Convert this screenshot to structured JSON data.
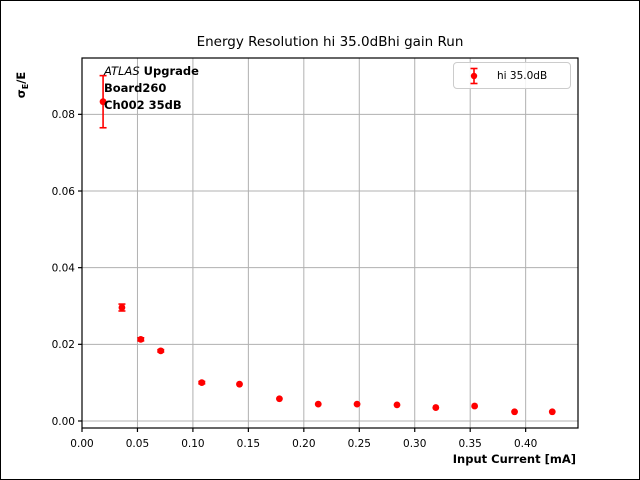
{
  "colors": {
    "accent": "#ff0000",
    "grid": "#b0b0b0",
    "axes": "#000000",
    "legend_border": "#cccccc",
    "background": "#ffffff"
  },
  "chart_data": {
    "type": "scatter",
    "title": "Energy Resolution hi 35.0dBhi gain Run",
    "xlabel": "Input Current [mA]",
    "ylabel": "σE/E",
    "ylabel_parts": {
      "sigma": "σ",
      "sub": "E",
      "rest": "/E"
    },
    "xlim": [
      0,
      0.4472
    ],
    "ylim": [
      -0.00183,
      0.0947
    ],
    "xticks": [
      0,
      0.05,
      0.1,
      0.15,
      0.2,
      0.25,
      0.3,
      0.35,
      0.4
    ],
    "yticks": [
      0,
      0.02,
      0.04,
      0.06,
      0.08
    ],
    "grid": true,
    "legend": {
      "label": "hi 35.0dB",
      "position": "upper right"
    },
    "annotation": {
      "experiment": "ATLAS",
      "tag": "Upgrade",
      "board": "Board260",
      "channel": "Ch002 35dB"
    },
    "series": [
      {
        "name": "hi 35.0dB",
        "color": "#ff0000",
        "marker": "circle",
        "x": [
          0.019,
          0.036,
          0.053,
          0.071,
          0.108,
          0.142,
          0.178,
          0.213,
          0.248,
          0.284,
          0.319,
          0.354,
          0.39,
          0.424
        ],
        "y": [
          0.0833,
          0.0296,
          0.0213,
          0.0183,
          0.01,
          0.0096,
          0.0058,
          0.0044,
          0.0044,
          0.0042,
          0.0035,
          0.0039,
          0.0024,
          0.0024
        ],
        "yerr": [
          0.0068,
          0.0009,
          0.0004,
          0.0003,
          0.0003,
          0.0002,
          0.0002,
          0.0002,
          0.0002,
          0.0002,
          0.0002,
          0.0002,
          0.0002,
          0.0002
        ]
      }
    ]
  }
}
